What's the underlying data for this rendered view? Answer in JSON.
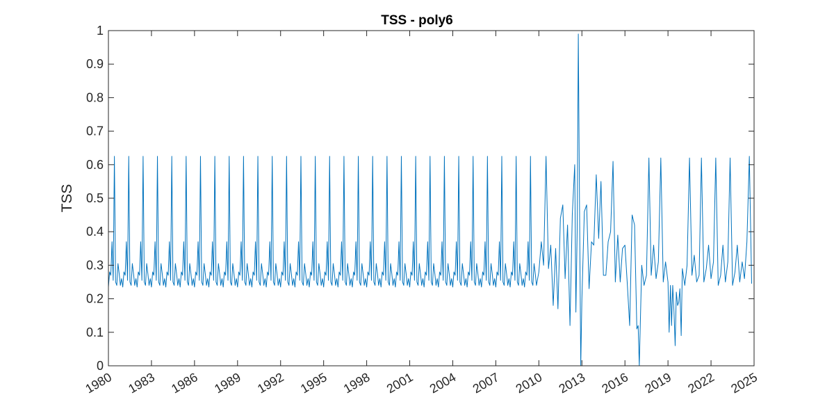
{
  "chart_data": {
    "type": "line",
    "title": "TSS - poly6",
    "xlabel": "",
    "ylabel": "TSS",
    "xlim": [
      1980,
      2025
    ],
    "ylim": [
      0,
      1
    ],
    "xticks": [
      "1980",
      "1983",
      "1986",
      "1989",
      "1992",
      "1995",
      "1998",
      "2001",
      "2004",
      "2007",
      "2010",
      "2013",
      "2016",
      "2019",
      "2022",
      "2025"
    ],
    "yticks": [
      "0",
      "0.1",
      "0.2",
      "0.3",
      "0.4",
      "0.5",
      "0.6",
      "0.7",
      "0.8",
      "0.9",
      "1"
    ],
    "grid": false,
    "line_color": "#0072BD",
    "series": [
      {
        "name": "",
        "note_pattern_1980_2010": [
          0.235,
          0.28,
          0.27,
          0.37,
          0.255,
          0.625,
          0.25,
          0.24,
          0.305,
          0.275,
          0.24,
          0.26
        ],
        "x": [
          1980.0,
          1980.08,
          1980.17,
          1980.25,
          1980.33,
          1980.42,
          1980.5,
          1980.58,
          1980.67,
          1980.75,
          1980.83,
          1980.92,
          2010.0,
          2010.17,
          2010.33,
          2010.5,
          2010.67,
          2010.83,
          2011.0,
          2011.17,
          2011.33,
          2011.5,
          2011.67,
          2011.83,
          2012.0,
          2012.17,
          2012.33,
          2012.5,
          2012.58,
          2012.67,
          2012.75,
          2012.83,
          2012.92,
          2013.0,
          2013.17,
          2013.33,
          2013.5,
          2013.67,
          2013.83,
          2014.0,
          2014.17,
          2014.33,
          2014.5,
          2014.67,
          2014.83,
          2015.0,
          2015.17,
          2015.33,
          2015.5,
          2015.67,
          2015.83,
          2016.0,
          2016.17,
          2016.33,
          2016.5,
          2016.67,
          2016.83,
          2016.92,
          2017.0,
          2017.17,
          2017.33,
          2017.5,
          2017.67,
          2017.83,
          2018.0,
          2018.17,
          2018.33,
          2018.5,
          2018.67,
          2018.83,
          2019.0,
          2019.08,
          2019.17,
          2019.25,
          2019.33,
          2019.42,
          2019.5,
          2019.58,
          2019.67,
          2019.75,
          2019.83,
          2019.92,
          2020.0,
          2020.17,
          2020.33,
          2020.5,
          2020.67,
          2020.83,
          2021.0,
          2021.17,
          2021.33,
          2021.5,
          2021.67,
          2021.83,
          2022.0,
          2022.17,
          2022.33,
          2022.5,
          2022.67,
          2022.83,
          2023.0,
          2023.17,
          2023.33,
          2023.5,
          2023.67,
          2023.83,
          2024.0,
          2024.17,
          2024.33,
          2024.5,
          2024.67,
          2024.83
        ],
        "y": [
          0.235,
          0.28,
          0.27,
          0.37,
          0.255,
          0.625,
          0.25,
          0.24,
          0.305,
          0.275,
          0.24,
          0.26,
          0.28,
          0.37,
          0.3,
          0.625,
          0.29,
          0.36,
          0.18,
          0.35,
          0.17,
          0.44,
          0.48,
          0.26,
          0.42,
          0.12,
          0.45,
          0.6,
          0.16,
          0.4,
          0.99,
          0.5,
          0.0,
          0.2,
          0.46,
          0.48,
          0.23,
          0.37,
          0.36,
          0.57,
          0.38,
          0.55,
          0.27,
          0.27,
          0.37,
          0.4,
          0.61,
          0.25,
          0.39,
          0.25,
          0.35,
          0.36,
          0.24,
          0.12,
          0.45,
          0.42,
          0.11,
          0.12,
          0.0,
          0.3,
          0.24,
          0.27,
          0.62,
          0.27,
          0.36,
          0.26,
          0.31,
          0.62,
          0.25,
          0.31,
          0.25,
          0.1,
          0.24,
          0.12,
          0.24,
          0.16,
          0.06,
          0.22,
          0.18,
          0.19,
          0.23,
          0.09,
          0.29,
          0.24,
          0.3,
          0.62,
          0.27,
          0.33,
          0.25,
          0.27,
          0.62,
          0.25,
          0.29,
          0.36,
          0.26,
          0.31,
          0.62,
          0.24,
          0.27,
          0.36,
          0.25,
          0.31,
          0.62,
          0.24,
          0.28,
          0.36,
          0.25,
          0.31,
          0.26,
          0.37,
          0.625,
          0.245
        ]
      }
    ]
  }
}
